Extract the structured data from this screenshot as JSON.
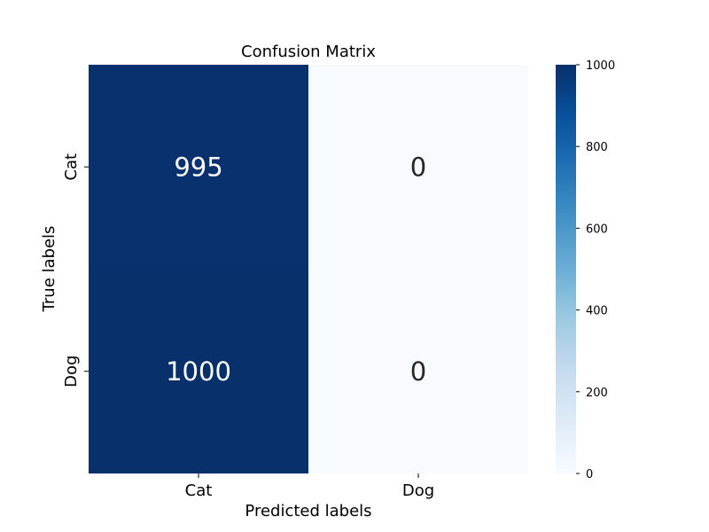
{
  "chart_data": {
    "type": "heatmap",
    "title": "Confusion Matrix",
    "xlabel": "Predicted labels",
    "ylabel": "True labels",
    "x_categories": [
      "Cat",
      "Dog"
    ],
    "y_categories": [
      "Cat",
      "Dog"
    ],
    "values": [
      [
        995,
        0
      ],
      [
        1000,
        0
      ]
    ],
    "cell_labels": [
      [
        "995",
        "0"
      ],
      [
        "1000",
        "0"
      ]
    ],
    "colormap": "Blues",
    "colorbar": {
      "range": [
        0,
        1000
      ],
      "ticks": [
        0,
        200,
        400,
        600,
        800,
        1000
      ],
      "tick_labels": [
        "0",
        "200",
        "400",
        "600",
        "800",
        "1000"
      ]
    },
    "grid": false
  },
  "colors": {
    "colormap_low": "#f7fbff",
    "colormap_high": "#08306b",
    "annotation_on_dark": "#ffffff",
    "annotation_on_light": "#262626"
  }
}
